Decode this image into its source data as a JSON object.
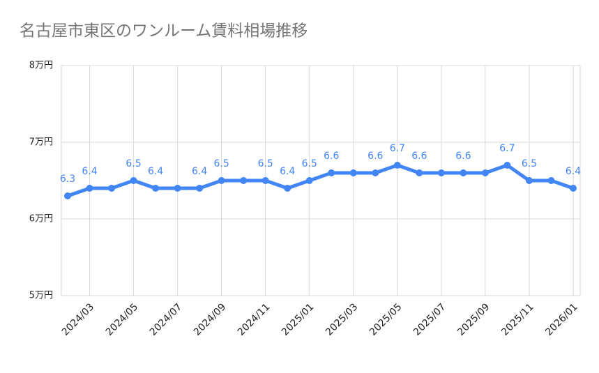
{
  "chart_data": {
    "type": "line",
    "title": "名古屋市東区のワンルーム賃料相場推移",
    "categories": [
      null,
      "2024/03",
      null,
      "2024/05",
      null,
      "2024/07",
      null,
      "2024/09",
      null,
      "2024/11",
      null,
      "2025/01",
      null,
      "2025/03",
      null,
      "2025/05",
      null,
      "2025/07",
      null,
      "2025/09",
      null,
      "2025/11",
      null,
      "2026/01"
    ],
    "values": [
      6.3,
      6.4,
      6.4,
      6.5,
      6.4,
      6.4,
      6.4,
      6.5,
      6.5,
      6.5,
      6.4,
      6.5,
      6.6,
      6.6,
      6.6,
      6.7,
      6.6,
      6.6,
      6.6,
      6.6,
      6.7,
      6.5,
      6.5,
      6.4
    ],
    "value_labels": [
      "6.3",
      "6.4",
      null,
      "6.5",
      "6.4",
      null,
      "6.4",
      "6.5",
      null,
      "6.5",
      "6.4",
      "6.5",
      "6.6",
      null,
      "6.6",
      "6.7",
      "6.6",
      null,
      "6.6",
      null,
      "6.7",
      "6.5",
      null,
      "6.4"
    ],
    "color": "#4285f4",
    "ylim": [
      5,
      8
    ],
    "yticks": [
      {
        "value": 5,
        "label": "5万円"
      },
      {
        "value": 6,
        "label": "6万円"
      },
      {
        "value": 7,
        "label": "7万円"
      },
      {
        "value": 8,
        "label": "8万円"
      }
    ],
    "grid": true
  }
}
